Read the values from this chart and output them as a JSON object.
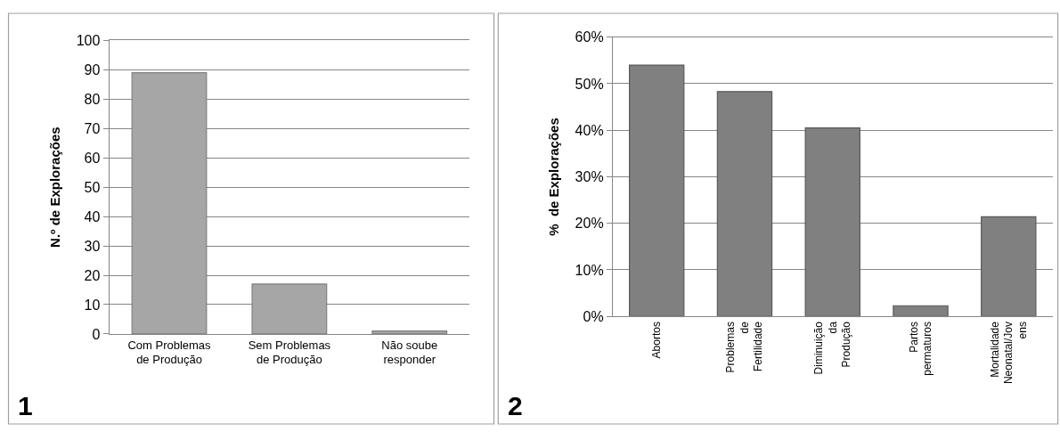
{
  "chart_data": [
    {
      "type": "bar",
      "ylabel": "N.º de Explorações",
      "categories": [
        "Com Problemas\nde Produção",
        "Sem Problemas\nde Produção",
        "Não soube\nresponder"
      ],
      "values": [
        89,
        17,
        1
      ],
      "color": "#a6a6a6",
      "ylim": [
        0,
        100
      ],
      "yticks": [
        0,
        10,
        20,
        30,
        40,
        50,
        60,
        70,
        80,
        90,
        100
      ],
      "grid": "y",
      "annotations": [
        "1"
      ]
    },
    {
      "type": "bar",
      "ylabel": "%  de Explorações",
      "categories": [
        "Abortos",
        "Problemas\nde\nFertilidade",
        "Diminuição\nda\nProdução",
        "Partos\npermaturos",
        "Mortalidade\nNeonatal/Jov\nens"
      ],
      "values": [
        54,
        48.3,
        40.5,
        2.3,
        21.4
      ],
      "color": "#808080",
      "ylim": [
        0,
        60
      ],
      "yticks": [
        {
          "value": 0,
          "label": "0%"
        },
        {
          "value": 10,
          "label": "10%"
        },
        {
          "value": 20,
          "label": "20%"
        },
        {
          "value": 30,
          "label": "30%"
        },
        {
          "value": 40,
          "label": "40%"
        },
        {
          "value": 50,
          "label": "50%"
        },
        {
          "value": 60,
          "label": "60%"
        }
      ],
      "grid": "y",
      "annotations": [
        "2"
      ]
    }
  ]
}
